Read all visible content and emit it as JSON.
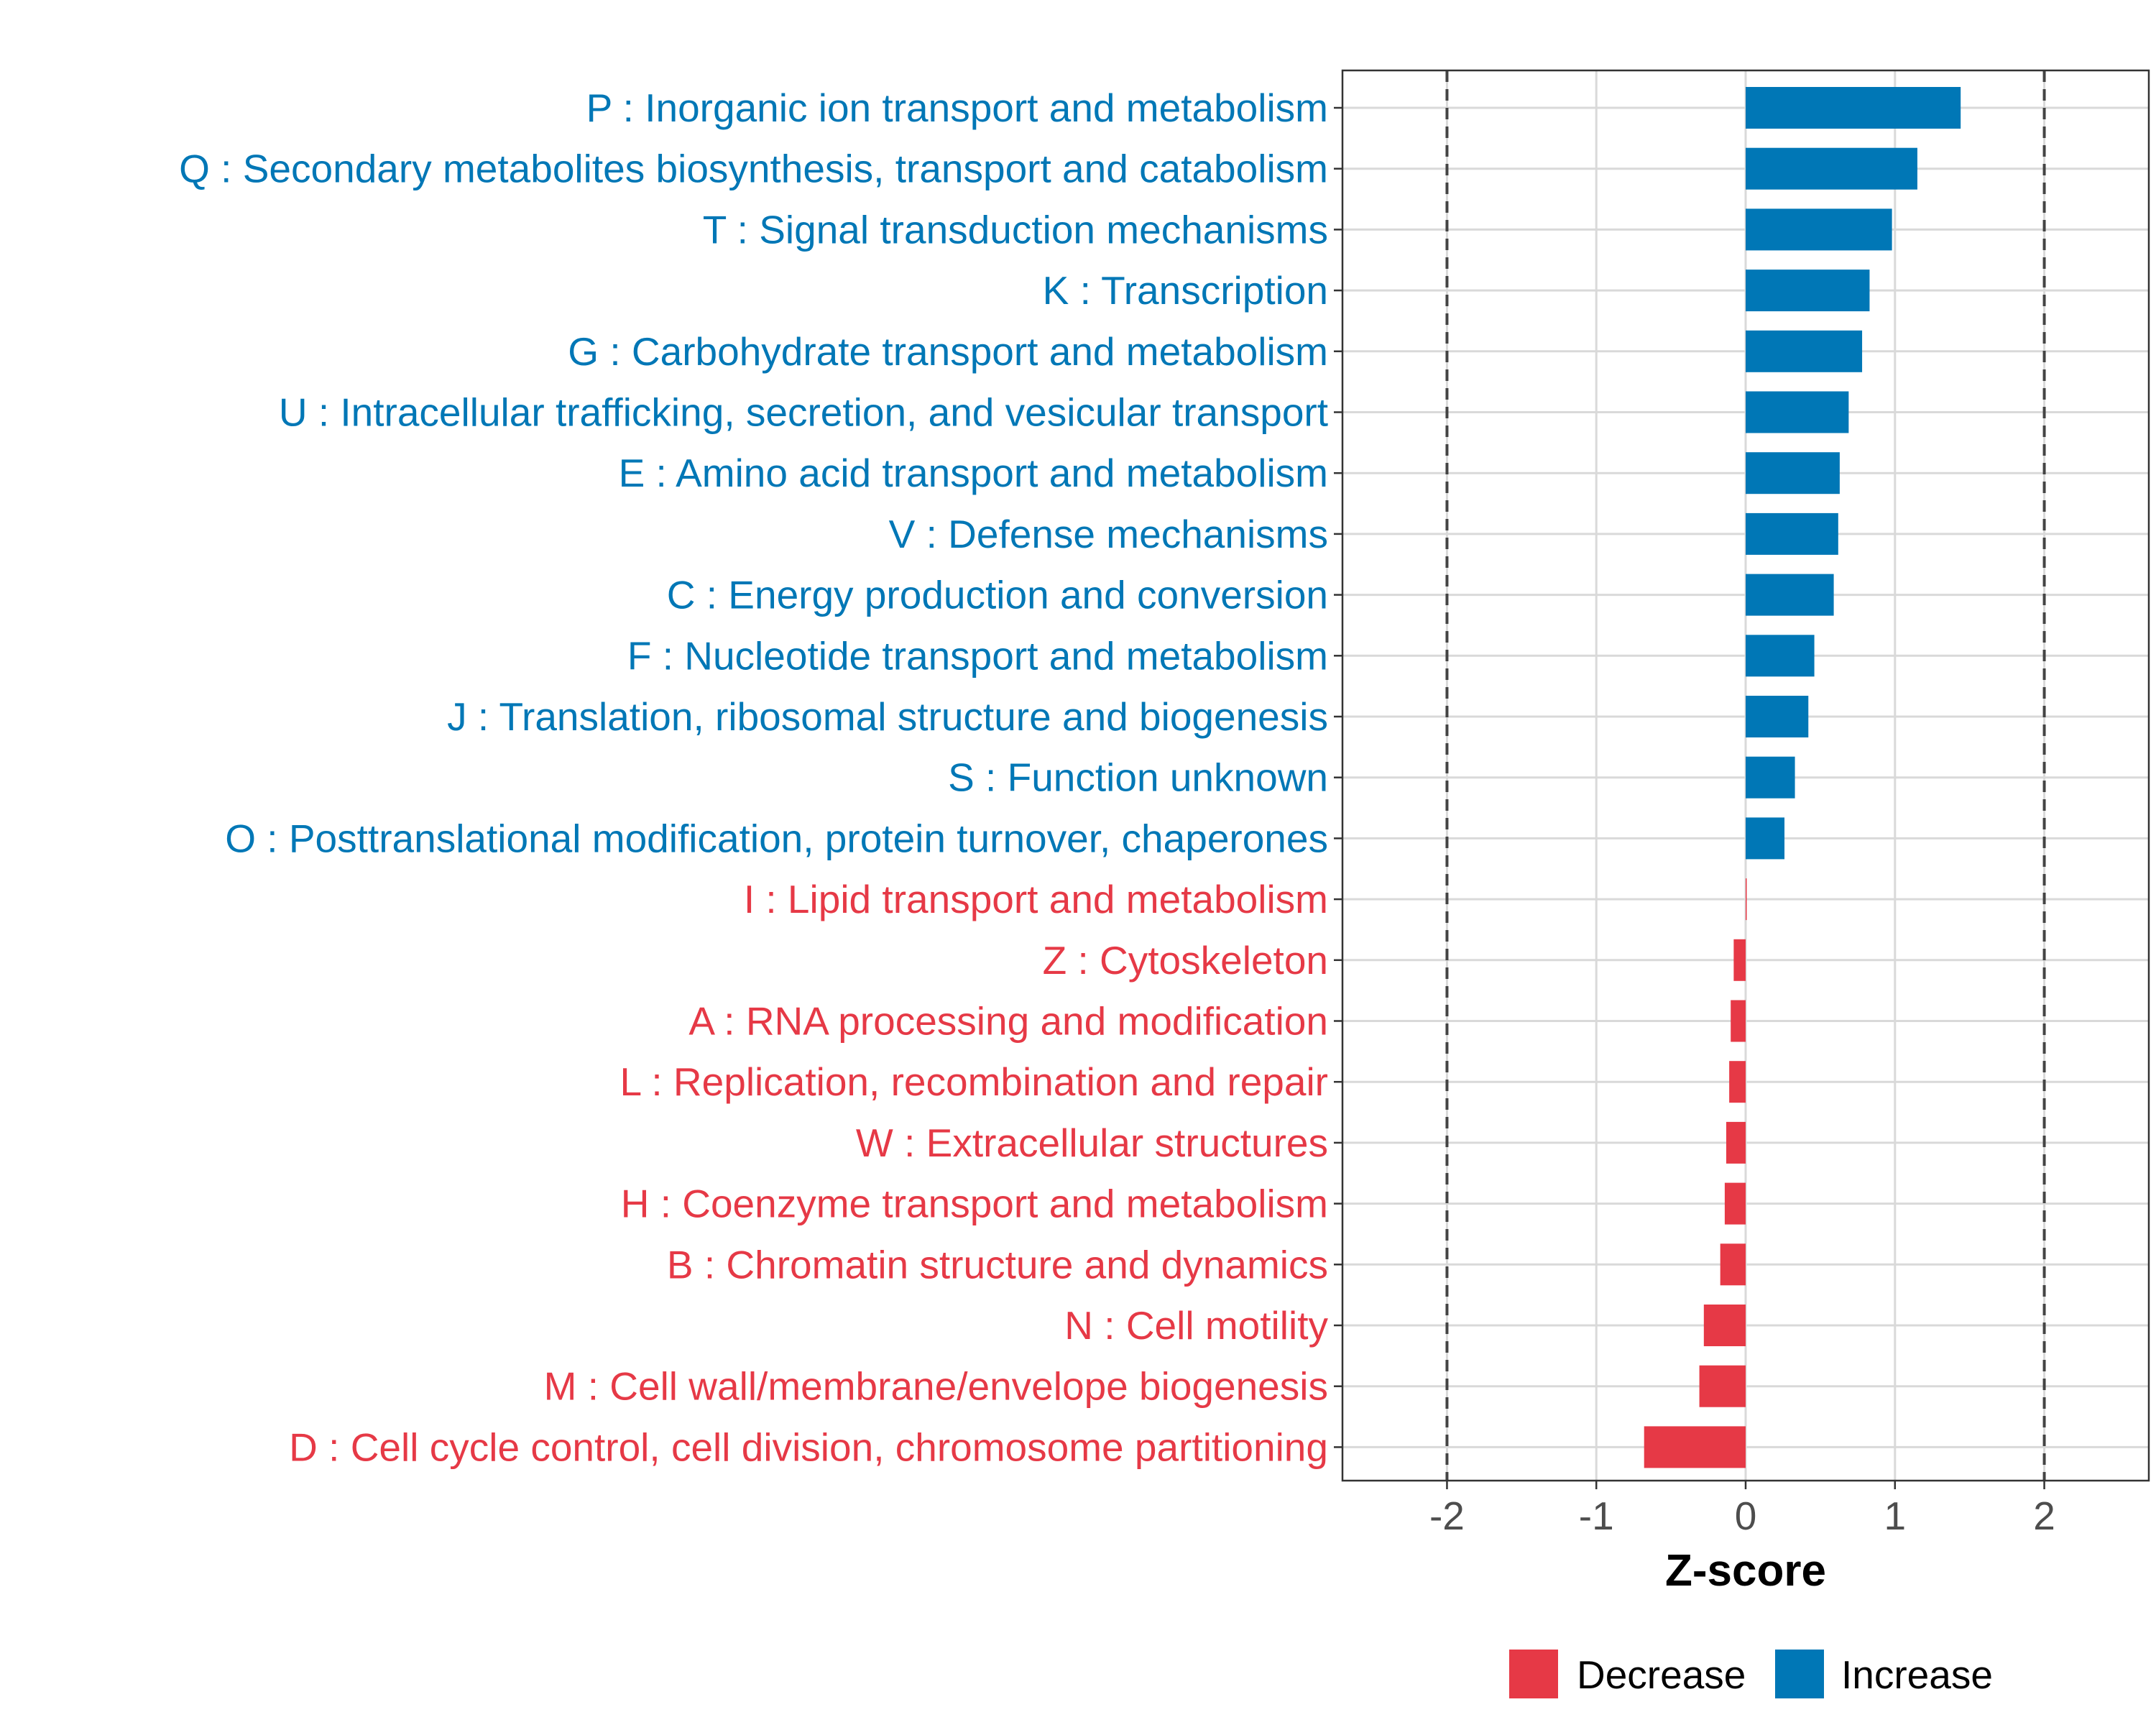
{
  "chart_data": {
    "type": "bar",
    "orientation": "horizontal",
    "xlabel": "Z-score",
    "xlim": [
      -2.7,
      2.7
    ],
    "x_ticks": [
      "-2",
      "-1",
      "0",
      "1",
      "2"
    ],
    "x_tick_values": [
      -2,
      -1,
      0,
      1,
      2
    ],
    "threshold_lines": [
      -2,
      2
    ],
    "categories": [
      "P : Inorganic ion transport and metabolism",
      "Q : Secondary metabolites biosynthesis, transport and catabolism",
      "T : Signal transduction mechanisms",
      "K : Transcription",
      "G : Carbohydrate transport and metabolism",
      "U : Intracellular trafficking, secretion, and vesicular transport",
      "E : Amino acid transport and metabolism",
      "V : Defense mechanisms",
      "C : Energy production and conversion",
      "F : Nucleotide transport and metabolism",
      "J : Translation, ribosomal structure and biogenesis",
      "S : Function unknown",
      "O : Posttranslational modification, protein turnover, chaperones",
      "I : Lipid transport and metabolism",
      "Z : Cytoskeleton",
      "A : RNA processing and modification",
      "L : Replication, recombination and repair",
      "W : Extracellular structures",
      "H : Coenzyme transport and metabolism",
      "B : Chromatin structure and dynamics",
      "N : Cell motility",
      "M : Cell wall/membrane/envelope biogenesis",
      "D : Cell cycle control, cell division, chromosome partitioning"
    ],
    "values": [
      1.44,
      1.15,
      0.98,
      0.83,
      0.78,
      0.69,
      0.63,
      0.62,
      0.59,
      0.46,
      0.42,
      0.33,
      0.26,
      0.0,
      -0.08,
      -0.1,
      -0.11,
      -0.13,
      -0.14,
      -0.17,
      -0.28,
      -0.31,
      -0.68
    ],
    "groups": [
      "Increase",
      "Increase",
      "Increase",
      "Increase",
      "Increase",
      "Increase",
      "Increase",
      "Increase",
      "Increase",
      "Increase",
      "Increase",
      "Increase",
      "Increase",
      "Decrease",
      "Decrease",
      "Decrease",
      "Decrease",
      "Decrease",
      "Decrease",
      "Decrease",
      "Decrease",
      "Decrease",
      "Decrease"
    ],
    "legend": {
      "position": "bottom",
      "entries": [
        {
          "label": "Decrease",
          "color": "#e63946"
        },
        {
          "label": "Increase",
          "color": "#0077b6"
        }
      ]
    },
    "colors": {
      "Increase": "#0077b6",
      "Decrease": "#e63946"
    },
    "grid": true
  }
}
